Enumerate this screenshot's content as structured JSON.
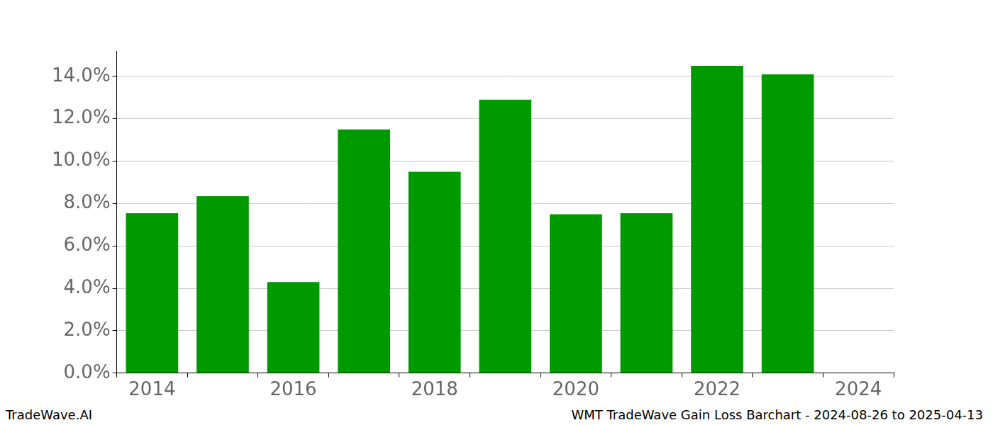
{
  "chart_data": {
    "type": "bar",
    "title": "WMT TradeWave Gain Loss Barchart - 2024-08-26 to 2025-04-13",
    "annotations": [
      "TradeWave.AI"
    ],
    "categories": [
      "2014",
      null,
      "2016",
      null,
      "2018",
      null,
      "2020",
      null,
      "2022",
      null,
      "2024"
    ],
    "values": [
      7.55,
      8.35,
      4.3,
      11.5,
      9.5,
      12.9,
      7.5,
      7.55,
      14.5,
      14.1,
      null
    ],
    "color": "#009900",
    "ylim": [
      0,
      15.2
    ],
    "yticks": [
      {
        "value": 0,
        "label": "0.0%"
      },
      {
        "value": 2,
        "label": "2.0%"
      },
      {
        "value": 4,
        "label": "4.0%"
      },
      {
        "value": 6,
        "label": "6.0%"
      },
      {
        "value": 8,
        "label": "8.0%"
      },
      {
        "value": 10,
        "label": "10.0%"
      },
      {
        "value": 12,
        "label": "12.0%"
      },
      {
        "value": 14,
        "label": "14.0%"
      }
    ],
    "grid": true
  }
}
